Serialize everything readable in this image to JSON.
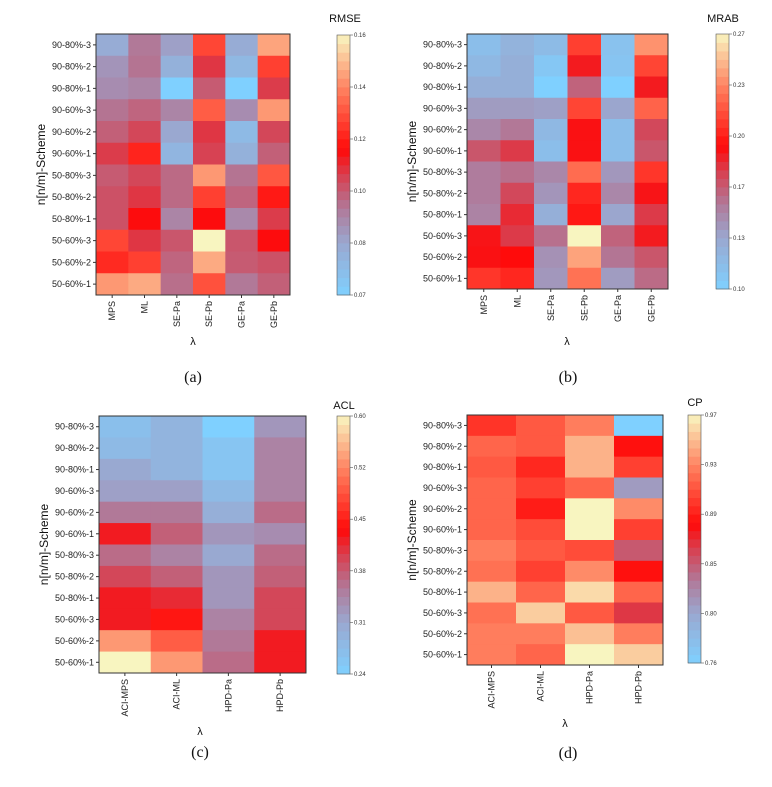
{
  "chart_data": [
    {
      "type": "heatmap",
      "caption": "(a)",
      "metric": "RMSE",
      "xlabel": "λ",
      "ylabel": "n[n/m]-Scheme",
      "x": [
        "MPS",
        "ML",
        "SE-Pa",
        "SE-Pb",
        "GE-Pa",
        "GE-Pb"
      ],
      "y": [
        "90-80%-3",
        "90-80%-2",
        "90-80%-1",
        "90-60%-3",
        "90-60%-2",
        "90-60%-1",
        "50-80%-3",
        "50-80%-2",
        "50-80%-1",
        "50-60%-3",
        "50-60%-2",
        "50-60%-1"
      ],
      "colorbar_range": [
        0.07,
        0.16
      ],
      "colorbar_ticks": [
        "0.16",
        "0.14",
        "0.12",
        "0.10",
        "0.08",
        "0.07"
      ],
      "values": [
        [
          0.086,
          0.1,
          0.09,
          0.131,
          0.086,
          0.147
        ],
        [
          0.093,
          0.101,
          0.084,
          0.113,
          0.081,
          0.13
        ],
        [
          0.095,
          0.097,
          0.07,
          0.106,
          0.07,
          0.112
        ],
        [
          0.101,
          0.104,
          0.097,
          0.135,
          0.095,
          0.145
        ],
        [
          0.105,
          0.11,
          0.088,
          0.113,
          0.08,
          0.11
        ],
        [
          0.112,
          0.125,
          0.082,
          0.111,
          0.084,
          0.105
        ],
        [
          0.106,
          0.11,
          0.103,
          0.145,
          0.101,
          0.134
        ],
        [
          0.108,
          0.113,
          0.103,
          0.13,
          0.104,
          0.123
        ],
        [
          0.108,
          0.12,
          0.097,
          0.12,
          0.096,
          0.112
        ],
        [
          0.131,
          0.113,
          0.107,
          0.16,
          0.107,
          0.12
        ],
        [
          0.126,
          0.13,
          0.104,
          0.148,
          0.106,
          0.108
        ],
        [
          0.145,
          0.148,
          0.102,
          0.133,
          0.1,
          0.105
        ]
      ]
    },
    {
      "type": "heatmap",
      "caption": "(b)",
      "metric": "MRAB",
      "xlabel": "λ",
      "ylabel": "n[n/m]-Scheme",
      "x": [
        "MPS",
        "ML",
        "SE-Pa",
        "SE-Pb",
        "GE-Pa",
        "GE-Pb"
      ],
      "y": [
        "90-80%-3",
        "90-80%-2",
        "90-80%-1",
        "90-60%-3",
        "90-60%-2",
        "90-60%-1",
        "50-80%-3",
        "50-80%-2",
        "50-80%-1",
        "50-60%-3",
        "50-60%-2",
        "50-60%-1"
      ],
      "colorbar_range": [
        0.1,
        0.27
      ],
      "colorbar_ticks": [
        "0.27",
        "0.23",
        "0.20",
        "0.17",
        "0.13",
        "0.10"
      ],
      "values": [
        [
          0.115,
          0.125,
          0.118,
          0.213,
          0.112,
          0.24
        ],
        [
          0.12,
          0.128,
          0.108,
          0.19,
          0.11,
          0.215
        ],
        [
          0.128,
          0.128,
          0.1,
          0.165,
          0.1,
          0.19
        ],
        [
          0.14,
          0.14,
          0.138,
          0.215,
          0.135,
          0.225
        ],
        [
          0.15,
          0.157,
          0.12,
          0.193,
          0.115,
          0.175
        ],
        [
          0.17,
          0.18,
          0.115,
          0.193,
          0.115,
          0.17
        ],
        [
          0.155,
          0.16,
          0.15,
          0.228,
          0.142,
          0.21
        ],
        [
          0.155,
          0.175,
          0.143,
          0.205,
          0.15,
          0.192
        ],
        [
          0.152,
          0.185,
          0.128,
          0.2,
          0.135,
          0.18
        ],
        [
          0.192,
          0.18,
          0.16,
          0.27,
          0.165,
          0.19
        ],
        [
          0.193,
          0.195,
          0.145,
          0.245,
          0.158,
          0.17
        ],
        [
          0.21,
          0.205,
          0.142,
          0.23,
          0.14,
          0.162
        ]
      ]
    },
    {
      "type": "heatmap",
      "caption": "(c)",
      "metric": "ACL",
      "xlabel": "λ",
      "ylabel": "n[n/m]-Scheme",
      "x": [
        "ACI-MPS",
        "ACI-ML",
        "HPD-Pa",
        "HPD-Pb"
      ],
      "y": [
        "90-80%-3",
        "90-80%-2",
        "90-80%-1",
        "90-60%-3",
        "90-60%-2",
        "90-60%-1",
        "50-80%-3",
        "50-80%-2",
        "50-80%-1",
        "50-60%-3",
        "50-60%-2",
        "50-60%-1"
      ],
      "colorbar_range": [
        0.24,
        0.6
      ],
      "colorbar_ticks": [
        "0.60",
        "0.52",
        "0.45",
        "0.38",
        "0.31",
        "0.24"
      ],
      "values": [
        [
          0.27,
          0.29,
          0.24,
          0.33
        ],
        [
          0.28,
          0.29,
          0.26,
          0.35
        ],
        [
          0.31,
          0.29,
          0.26,
          0.35
        ],
        [
          0.32,
          0.32,
          0.28,
          0.35
        ],
        [
          0.36,
          0.36,
          0.3,
          0.37
        ],
        [
          0.43,
          0.38,
          0.33,
          0.34
        ],
        [
          0.37,
          0.35,
          0.31,
          0.37
        ],
        [
          0.4,
          0.38,
          0.33,
          0.38
        ],
        [
          0.43,
          0.42,
          0.33,
          0.4
        ],
        [
          0.43,
          0.45,
          0.35,
          0.4
        ],
        [
          0.54,
          0.5,
          0.36,
          0.43
        ],
        [
          0.6,
          0.54,
          0.37,
          0.43
        ]
      ]
    },
    {
      "type": "heatmap",
      "caption": "(d)",
      "metric": "CP",
      "xlabel": "λ",
      "ylabel": "n[n/m]-Scheme",
      "x": [
        "ACI-MPS",
        "ACI-ML",
        "HPD-Pa",
        "HPD-Pb"
      ],
      "y": [
        "90-80%-3",
        "90-80%-2",
        "90-80%-1",
        "90-60%-3",
        "90-60%-2",
        "90-60%-1",
        "50-80%-3",
        "50-80%-2",
        "50-80%-1",
        "50-60%-3",
        "50-60%-2",
        "50-60%-1"
      ],
      "colorbar_range": [
        0.76,
        0.97
      ],
      "colorbar_ticks": [
        "0.97",
        "0.93",
        "0.89",
        "0.85",
        "0.80",
        "0.76"
      ],
      "values": [
        [
          0.895,
          0.91,
          0.925,
          0.76
        ],
        [
          0.915,
          0.91,
          0.945,
          0.88
        ],
        [
          0.91,
          0.89,
          0.945,
          0.9
        ],
        [
          0.915,
          0.9,
          0.915,
          0.81
        ],
        [
          0.915,
          0.885,
          0.97,
          0.93
        ],
        [
          0.915,
          0.905,
          0.97,
          0.9
        ],
        [
          0.925,
          0.91,
          0.905,
          0.845
        ],
        [
          0.92,
          0.9,
          0.93,
          0.88
        ],
        [
          0.945,
          0.915,
          0.96,
          0.915
        ],
        [
          0.92,
          0.955,
          0.91,
          0.86
        ],
        [
          0.925,
          0.925,
          0.95,
          0.925
        ],
        [
          0.925,
          0.915,
          0.97,
          0.955
        ]
      ]
    }
  ],
  "colormap": [
    "#7fd0ff",
    "#9aa8d0",
    "#b07a9a",
    "#d84050",
    "#ff0a0a",
    "#ff7a5a",
    "#f8f5c0"
  ]
}
